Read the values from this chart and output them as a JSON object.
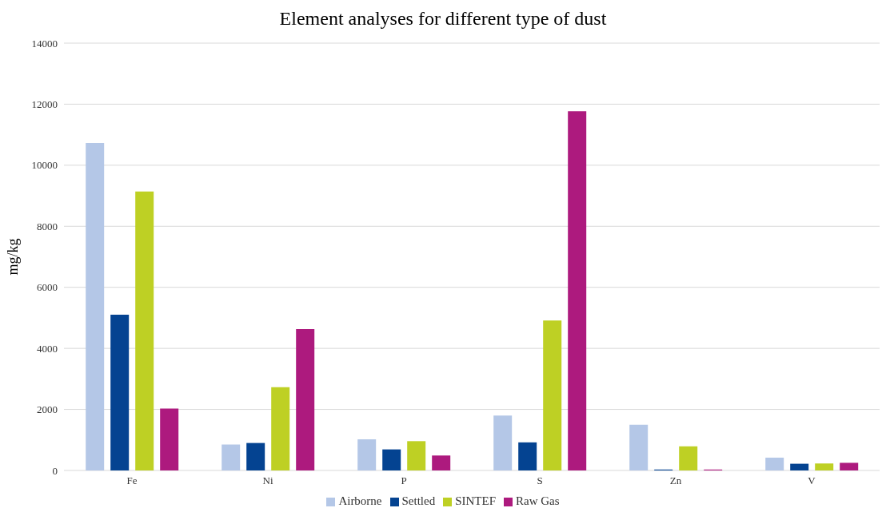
{
  "chart_data": {
    "type": "bar",
    "title": "Element analyses for different type of dust",
    "ylabel": "mg/kg",
    "categories": [
      "Fe",
      "Ni",
      "P",
      "S",
      "Zn",
      "V"
    ],
    "series": [
      {
        "name": "Airborne",
        "color": "#b4c7e7",
        "values": [
          10730,
          850,
          1020,
          1800,
          1500,
          420
        ]
      },
      {
        "name": "Settled",
        "color": "#044391",
        "values": [
          5100,
          900,
          690,
          920,
          30,
          220
        ]
      },
      {
        "name": "SINTEF",
        "color": "#bed024",
        "values": [
          9140,
          2730,
          960,
          4910,
          790,
          230
        ]
      },
      {
        "name": "Raw Gas",
        "color": "#ad1a7e",
        "values": [
          2030,
          4630,
          490,
          11770,
          30,
          250
        ]
      }
    ],
    "ylim": [
      0,
      14000
    ],
    "yticks": [
      0,
      2000,
      4000,
      6000,
      8000,
      10000,
      12000,
      14000
    ],
    "grid": "y",
    "legend": "bottom"
  }
}
